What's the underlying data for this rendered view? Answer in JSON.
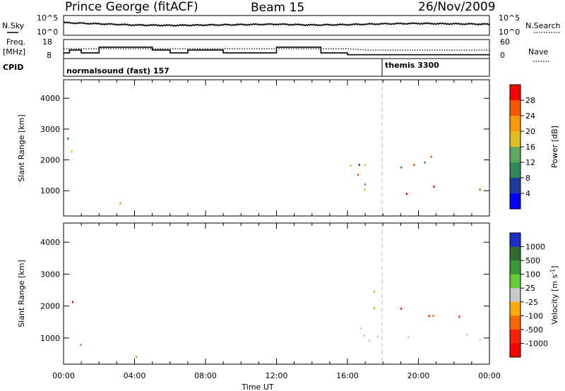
{
  "header": {
    "station": "Prince George (fitACF)",
    "beam": "Beam 15",
    "date": "26/Nov/2009"
  },
  "strip_labels": {
    "nsky": "N.Sky",
    "nsky_top": "10^5",
    "nsky_bottom": "10^0",
    "nsearch": "N.Search",
    "nsearch_top": "10^5",
    "nsearch_bottom": "10^0",
    "freq_line1": "Freq.",
    "freq_line2": "[MHz]",
    "freq_top": "18",
    "freq_bottom": "8",
    "nave": "Nave",
    "nave_top": "60",
    "nave_bottom": "0",
    "cpid": "CPID",
    "mode1": "normalsound (fast) 157",
    "mode2": "themis 3300"
  },
  "colors": {
    "power_scale": [
      "#0000ff",
      "#1e3c9e",
      "#2e8b57",
      "#5aaa5a",
      "#e0c020",
      "#ff9900",
      "#ff5500",
      "#ff0000"
    ],
    "velocity_scale": [
      "#1a2ecc",
      "#2e6f2e",
      "#3a9a3a",
      "#66cc33",
      "#c8c8c8",
      "#ffaa00",
      "#ff6600",
      "#ff2200",
      "#ff0000"
    ],
    "ground_scatter": "#c8c8c8"
  },
  "chart_data": [
    {
      "type": "line",
      "panel": "sky-noise",
      "x": [
        "00:00",
        "02:00",
        "04:00",
        "06:00",
        "08:00",
        "10:00",
        "12:00",
        "14:00",
        "16:00",
        "18:00",
        "20:00",
        "22:00",
        "24:00"
      ],
      "y_log10": [
        3.2,
        2.9,
        2.6,
        2.5,
        2.6,
        2.7,
        2.8,
        2.6,
        2.7,
        2.9,
        3.0,
        2.9,
        2.8
      ],
      "ylim": [
        "10^0",
        "10^5"
      ]
    },
    {
      "type": "line",
      "panel": "frequency",
      "steps": [
        {
          "start": "00:00",
          "end": "00:20",
          "mhz": 11.0
        },
        {
          "start": "00:20",
          "end": "01:00",
          "mhz": 12.5
        },
        {
          "start": "01:00",
          "end": "02:00",
          "mhz": 11.0
        },
        {
          "start": "02:00",
          "end": "05:00",
          "mhz": 14.0
        },
        {
          "start": "05:00",
          "end": "06:00",
          "mhz": 12.5
        },
        {
          "start": "06:00",
          "end": "07:00",
          "mhz": 11.0
        },
        {
          "start": "07:00",
          "end": "09:00",
          "mhz": 12.5
        },
        {
          "start": "09:00",
          "end": "12:00",
          "mhz": 11.0
        },
        {
          "start": "12:00",
          "end": "14:30",
          "mhz": 14.0
        },
        {
          "start": "14:30",
          "end": "16:00",
          "mhz": 11.0
        },
        {
          "start": "16:00",
          "end": "24:00",
          "mhz": 10.0
        }
      ],
      "ylim": [
        8,
        18
      ]
    },
    {
      "type": "heatmap",
      "panel": "power",
      "title": "Prince George (fitACF) Beam 15",
      "xlabel": "",
      "ylabel": "Slant Range [km]",
      "xticks": [
        "00:00",
        "04:00",
        "08:00",
        "12:00",
        "16:00",
        "20:00",
        "00:00"
      ],
      "yticks": [
        1000,
        2000,
        3000,
        4000
      ],
      "ylim": [
        180,
        4600
      ],
      "colorbar_label": "Power [dB]",
      "colorbar_ticks": [
        4,
        8,
        12,
        16,
        20,
        24,
        28
      ],
      "echo_regions": [
        {
          "t0": 0.2,
          "t1": 1.2,
          "r0": 700,
          "r1": 2900,
          "level": "weak-strong"
        },
        {
          "t0": 2.0,
          "t1": 5.5,
          "r0": 400,
          "r1": 700,
          "level": "moderate"
        },
        {
          "t0": 14.5,
          "t1": 17.5,
          "r0": 900,
          "r1": 2300,
          "level": "moderate"
        },
        {
          "t0": 16.5,
          "t1": 24.0,
          "r0": 800,
          "r1": 1200,
          "level": "strong"
        },
        {
          "t0": 16.5,
          "t1": 24.0,
          "r0": 1700,
          "r1": 2300,
          "level": "moderate"
        }
      ]
    },
    {
      "type": "heatmap",
      "panel": "velocity",
      "xlabel": "Time UT",
      "ylabel": "Slant Range [km]",
      "xticks": [
        "00:00",
        "04:00",
        "08:00",
        "12:00",
        "16:00",
        "20:00",
        "00:00"
      ],
      "yticks": [
        1000,
        2000,
        3000,
        4000
      ],
      "ylim": [
        180,
        4600
      ],
      "colorbar_label": "Velocity [m s^-1]",
      "colorbar_ticks": [
        1000,
        500,
        100,
        25,
        -25,
        -100,
        -500,
        -1000
      ],
      "echo_regions": [
        {
          "t0": 0.2,
          "t1": 1.0,
          "r0": 700,
          "r1": 2900,
          "level": "mixed"
        },
        {
          "t0": 2.0,
          "t1": 6.0,
          "r0": 400,
          "r1": 700,
          "level": "low-velocity"
        },
        {
          "t0": 14.5,
          "t1": 24.0,
          "r0": 700,
          "r1": 1400,
          "level": "ground-scatter"
        },
        {
          "t0": 17.0,
          "t1": 23.0,
          "r0": 1600,
          "r1": 2500,
          "level": "negative"
        }
      ]
    }
  ],
  "xaxis": {
    "label": "Time UT",
    "ticks": [
      "00:00",
      "04:00",
      "08:00",
      "12:00",
      "16:00",
      "20:00",
      "00:00"
    ]
  },
  "power_colorbar": {
    "label": "Power [dB]",
    "ticks": [
      "28",
      "24",
      "20",
      "16",
      "12",
      "8",
      "4"
    ]
  },
  "velocity_colorbar": {
    "label": "Velocity [m s",
    "label_sup": "-1",
    "label_end": "]",
    "ticks": [
      "1000",
      "500",
      "100",
      "25",
      "-25",
      "-100",
      "-500",
      "-1000"
    ]
  },
  "range_axis": {
    "label": "Slant Range [km]",
    "ticks": [
      "1000",
      "2000",
      "3000",
      "4000"
    ]
  }
}
